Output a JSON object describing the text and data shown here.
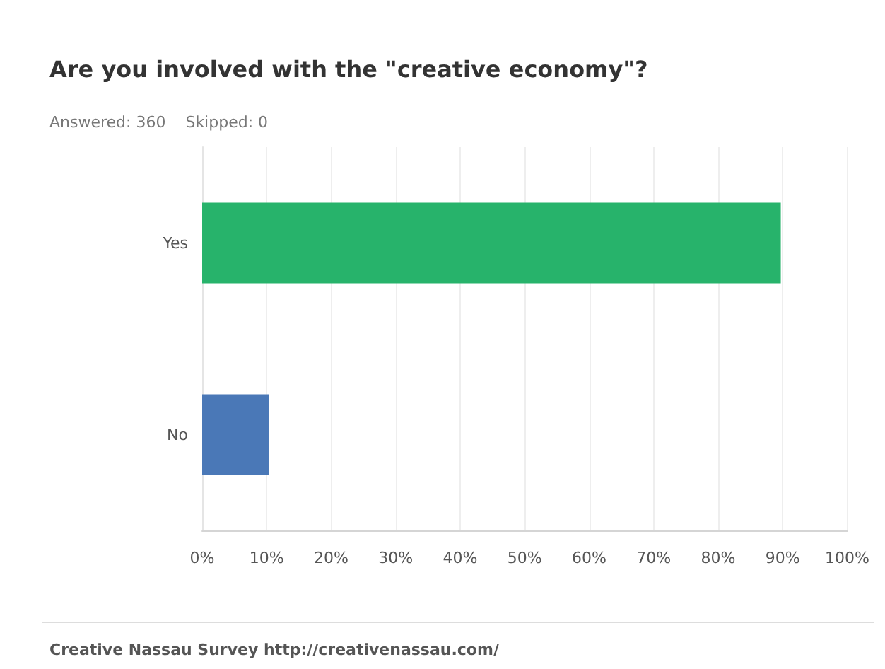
{
  "chart_data": {
    "type": "bar",
    "orientation": "horizontal",
    "title": "Are you involved with the \"creative economy\"?",
    "subtitle": "Answered: 360    Skipped: 0",
    "categories": [
      "Yes",
      "No"
    ],
    "values": [
      89.7,
      10.3
    ],
    "colors": [
      "#27b36b",
      "#4a78b7"
    ],
    "xlim": [
      0,
      100
    ],
    "xticks": [
      {
        "value": 0,
        "label": "0%"
      },
      {
        "value": 10,
        "label": "10%"
      },
      {
        "value": 20,
        "label": "20%"
      },
      {
        "value": 30,
        "label": "30%"
      },
      {
        "value": 40,
        "label": "40%"
      },
      {
        "value": 50,
        "label": "50%"
      },
      {
        "value": 60,
        "label": "60%"
      },
      {
        "value": 70,
        "label": "70%"
      },
      {
        "value": 80,
        "label": "80%"
      },
      {
        "value": 90,
        "label": "90%"
      },
      {
        "value": 100,
        "label": "100%"
      }
    ],
    "grid": "x",
    "annotations": [
      "Creative Nassau Survey http://creativenassau.com/"
    ]
  }
}
